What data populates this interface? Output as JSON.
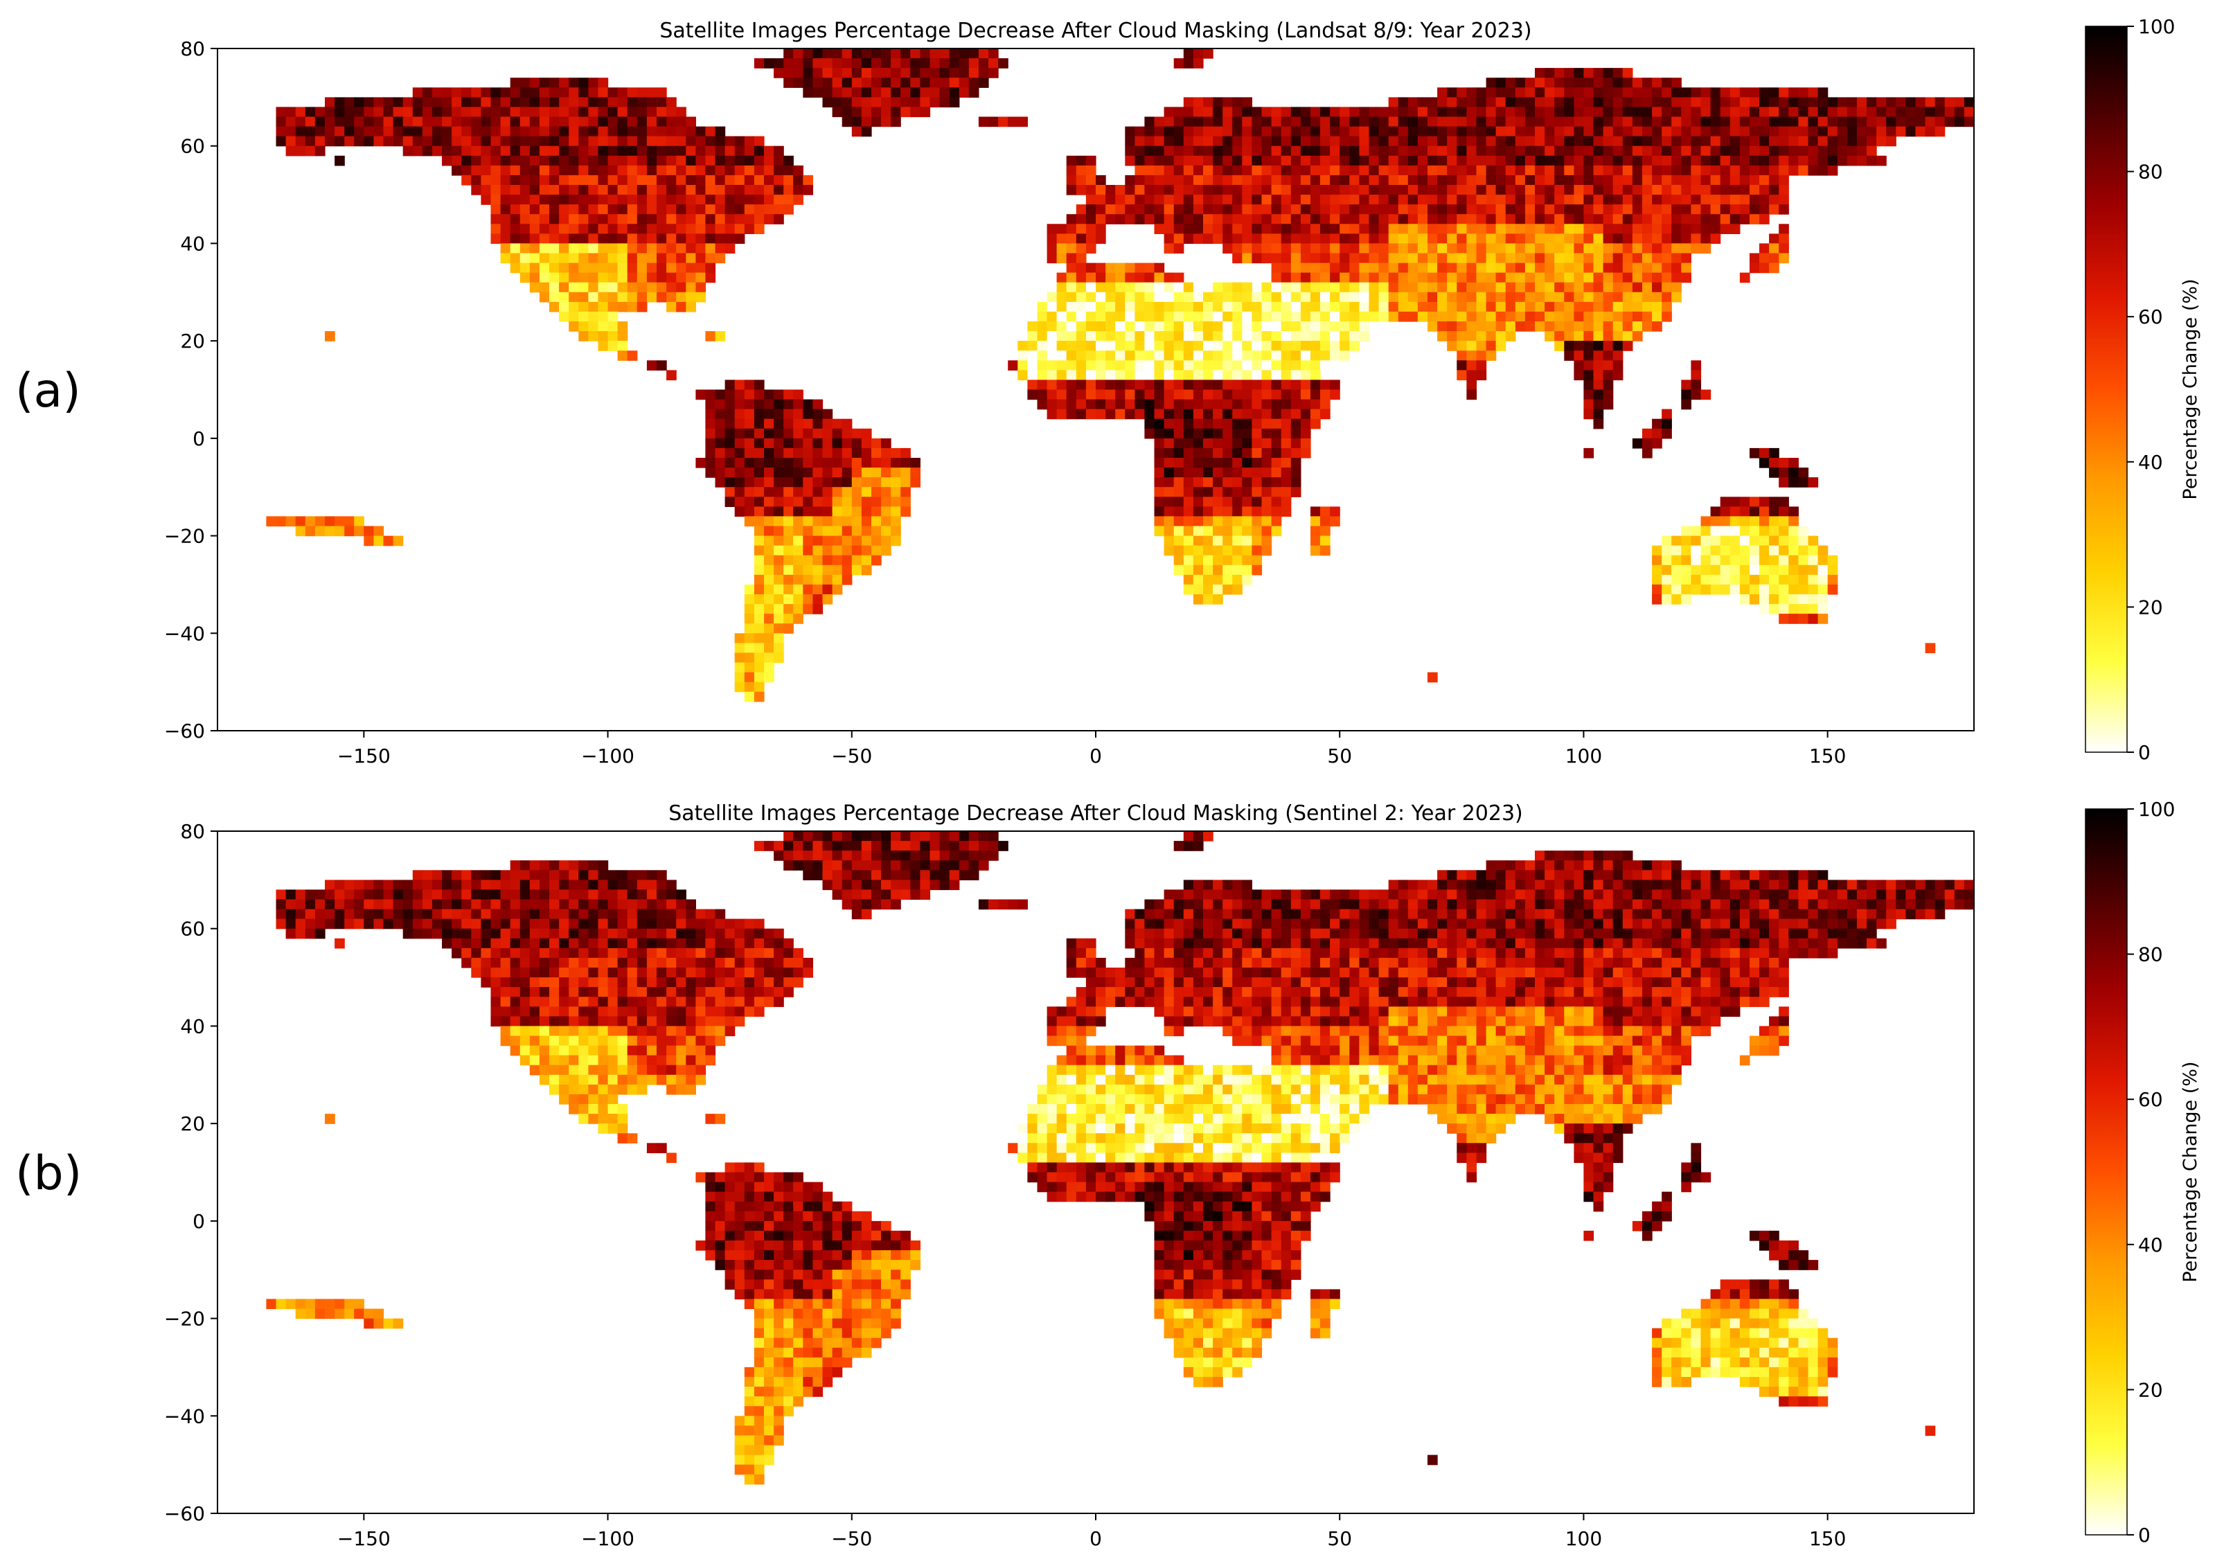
{
  "figure": {
    "panel_labels": [
      "(a)",
      "(b)"
    ]
  },
  "colormap": {
    "name": "hot_r",
    "stops": [
      "#ffffff",
      "#ffff40",
      "#ffd000",
      "#ff9a00",
      "#ff5000",
      "#e01800",
      "#a00000",
      "#500000",
      "#000000"
    ]
  },
  "chart_data": [
    {
      "type": "heatmap",
      "title": "Satellite Images Percentage Decrease After Cloud Masking (Landsat 8/9: Year 2023)",
      "xlabel": "",
      "ylabel": "",
      "xlim": [
        -180,
        180
      ],
      "ylim": [
        -60,
        80
      ],
      "xticks": [
        -150,
        -100,
        -50,
        0,
        50,
        100,
        150
      ],
      "yticks": [
        -60,
        -40,
        -20,
        0,
        20,
        40,
        60,
        80
      ],
      "colorbar": {
        "label": "Percentage Change (%)",
        "range": [
          0,
          100
        ],
        "ticks": [
          0,
          20,
          40,
          60,
          80,
          100
        ]
      },
      "cell_size_deg": 2,
      "value_units": "%",
      "land_regions_lonlat": {
        "north_america": [
          [
            -168,
            68
          ],
          [
            -140,
            71
          ],
          [
            -110,
            74
          ],
          [
            -90,
            72
          ],
          [
            -80,
            64
          ],
          [
            -64,
            60
          ],
          [
            -56,
            52
          ],
          [
            -66,
            44
          ],
          [
            -76,
            38
          ],
          [
            -80,
            30
          ],
          [
            -82,
            25
          ],
          [
            -90,
            28
          ],
          [
            -97,
            25
          ],
          [
            -96,
            18
          ],
          [
            -88,
            15
          ],
          [
            -80,
            8
          ],
          [
            -78,
            8
          ],
          [
            -86,
            12
          ],
          [
            -92,
            15
          ],
          [
            -105,
            20
          ],
          [
            -110,
            24
          ],
          [
            -117,
            32
          ],
          [
            -122,
            37
          ],
          [
            -125,
            48
          ],
          [
            -135,
            58
          ],
          [
            -150,
            60
          ],
          [
            -165,
            58
          ],
          [
            -168,
            62
          ]
        ],
        "south_america": [
          [
            -80,
            10
          ],
          [
            -72,
            12
          ],
          [
            -62,
            10
          ],
          [
            -50,
            3
          ],
          [
            -35,
            -5
          ],
          [
            -38,
            -13
          ],
          [
            -41,
            -22
          ],
          [
            -48,
            -28
          ],
          [
            -58,
            -36
          ],
          [
            -63,
            -40
          ],
          [
            -66,
            -48
          ],
          [
            -70,
            -55
          ],
          [
            -74,
            -52
          ],
          [
            -73,
            -40
          ],
          [
            -71,
            -30
          ],
          [
            -70,
            -18
          ],
          [
            -76,
            -12
          ],
          [
            -81,
            -5
          ],
          [
            -80,
            0
          ]
        ],
        "africa": [
          [
            -17,
            15
          ],
          [
            -10,
            30
          ],
          [
            -5,
            36
          ],
          [
            10,
            37
          ],
          [
            20,
            32
          ],
          [
            32,
            31
          ],
          [
            34,
            28
          ],
          [
            43,
            12
          ],
          [
            51,
            11
          ],
          [
            44,
            0
          ],
          [
            40,
            -15
          ],
          [
            35,
            -24
          ],
          [
            32,
            -29
          ],
          [
            27,
            -33
          ],
          [
            20,
            -35
          ],
          [
            18,
            -30
          ],
          [
            12,
            -18
          ],
          [
            13,
            -5
          ],
          [
            9,
            4
          ],
          [
            0,
            5
          ],
          [
            -8,
            4
          ],
          [
            -13,
            8
          ]
        ],
        "eurasia": [
          [
            -10,
            37
          ],
          [
            -9,
            44
          ],
          [
            -1,
            46
          ],
          [
            -5,
            48
          ],
          [
            2,
            51
          ],
          [
            8,
            54
          ],
          [
            5,
            62
          ],
          [
            15,
            68
          ],
          [
            25,
            71
          ],
          [
            40,
            67
          ],
          [
            60,
            69
          ],
          [
            80,
            73
          ],
          [
            100,
            77
          ],
          [
            120,
            73
          ],
          [
            140,
            72
          ],
          [
            160,
            70
          ],
          [
            180,
            69
          ],
          [
            180,
            64
          ],
          [
            160,
            60
          ],
          [
            162,
            56
          ],
          [
            143,
            54
          ],
          [
            141,
            46
          ],
          [
            132,
            43
          ],
          [
            127,
            40
          ],
          [
            122,
            37
          ],
          [
            121,
            31
          ],
          [
            117,
            24
          ],
          [
            110,
            20
          ],
          [
            106,
            10
          ],
          [
            104,
            2
          ],
          [
            100,
            6
          ],
          [
            99,
            13
          ],
          [
            97,
            16
          ],
          [
            92,
            22
          ],
          [
            88,
            22
          ],
          [
            80,
            15
          ],
          [
            77,
            8
          ],
          [
            72,
            20
          ],
          [
            67,
            24
          ],
          [
            58,
            25
          ],
          [
            56,
            22
          ],
          [
            52,
            18
          ],
          [
            45,
            13
          ],
          [
            40,
            20
          ],
          [
            34,
            28
          ],
          [
            36,
            36
          ],
          [
            28,
            37
          ],
          [
            26,
            40
          ],
          [
            20,
            40
          ],
          [
            15,
            38
          ],
          [
            12,
            44
          ],
          [
            8,
            44
          ],
          [
            3,
            43
          ],
          [
            -3,
            36
          ]
        ],
        "greenland": [
          [
            -72,
            78
          ],
          [
            -55,
            80
          ],
          [
            -20,
            80
          ],
          [
            -18,
            76
          ],
          [
            -25,
            70
          ],
          [
            -40,
            65
          ],
          [
            -50,
            62
          ],
          [
            -55,
            68
          ]
        ],
        "australia": [
          [
            114,
            -22
          ],
          [
            122,
            -18
          ],
          [
            130,
            -12
          ],
          [
            137,
            -12
          ],
          [
            142,
            -11
          ],
          [
            146,
            -19
          ],
          [
            153,
            -25
          ],
          [
            150,
            -37
          ],
          [
            141,
            -38
          ],
          [
            130,
            -32
          ],
          [
            115,
            -34
          ]
        ],
        "arabia": [
          [
            34,
            28
          ],
          [
            43,
            12
          ],
          [
            52,
            16
          ],
          [
            57,
            22
          ],
          [
            56,
            26
          ],
          [
            50,
            30
          ],
          [
            40,
            32
          ]
        ],
        "india": [
          [
            68,
            23
          ],
          [
            72,
            20
          ],
          [
            77,
            8
          ],
          [
            80,
            15
          ],
          [
            88,
            22
          ],
          [
            90,
            26
          ],
          [
            75,
            33
          ]
        ],
        "madagascar": [
          [
            44,
            -13
          ],
          [
            50,
            -15
          ],
          [
            47,
            -25
          ],
          [
            43,
            -22
          ]
        ],
        "uk": [
          [
            -6,
            50
          ],
          [
            2,
            51
          ],
          [
            0,
            58
          ],
          [
            -5,
            58
          ]
        ],
        "japan": [
          [
            130,
            31
          ],
          [
            142,
            36
          ],
          [
            142,
            45
          ],
          [
            137,
            40
          ]
        ],
        "borneo": [
          [
            109,
            -2
          ],
          [
            118,
            7
          ],
          [
            118,
            0
          ],
          [
            114,
            -4
          ]
        ],
        "sumatra": [
          [
            95,
            5
          ],
          [
            100,
            0
          ],
          [
            106,
            -6
          ],
          [
            101,
            -3
          ]
        ],
        "new_guinea": [
          [
            131,
            -1
          ],
          [
            141,
            -3
          ],
          [
            150,
            -10
          ],
          [
            140,
            -9
          ]
        ],
        "new_zealand": [
          [
            166,
            -46
          ],
          [
            174,
            -41
          ],
          [
            178,
            -37
          ],
          [
            172,
            -44
          ]
        ],
        "iceland": [
          [
            -24,
            64
          ],
          [
            -14,
            64
          ],
          [
            -14,
            66
          ],
          [
            -22,
            66
          ]
        ],
        "alaska_extra": [
          [
            -168,
            54
          ],
          [
            -150,
            58
          ],
          [
            -160,
            56
          ]
        ],
        "svalbard": [
          [
            12,
            78
          ],
          [
            25,
            80
          ],
          [
            20,
            76
          ]
        ],
        "philippines": [
          [
            120,
            6
          ],
          [
            126,
            8
          ],
          [
            122,
            18
          ]
        ],
        "sri_lanka": [
          [
            80,
            6
          ],
          [
            82,
            8
          ],
          [
            80,
            10
          ]
        ],
        "cuba": [
          [
            -85,
            22
          ],
          [
            -74,
            20
          ],
          [
            -78,
            23
          ]
        ],
        "hawaii_pacific": [
          [
            -160,
            20
          ],
          [
            -155,
            19
          ],
          [
            -157,
            22
          ]
        ],
        "pacific_islands_a": [
          [
            -175,
            -15
          ],
          [
            -150,
            -17
          ],
          [
            -140,
            -22
          ],
          [
            -160,
            -20
          ]
        ],
        "kerguelen": [
          [
            68,
            -49
          ],
          [
            71,
            -50
          ],
          [
            70,
            -48
          ]
        ]
      }
    },
    {
      "type": "heatmap",
      "title": "Satellite Images Percentage Decrease After Cloud Masking (Sentinel 2: Year 2023)",
      "xlabel": "",
      "ylabel": "",
      "xlim": [
        -180,
        180
      ],
      "ylim": [
        -60,
        80
      ],
      "xticks": [
        -150,
        -100,
        -50,
        0,
        50,
        100,
        150
      ],
      "yticks": [
        -60,
        -40,
        -20,
        0,
        20,
        40,
        60,
        80
      ],
      "colorbar": {
        "label": "Percentage Change (%)",
        "range": [
          0,
          100
        ],
        "ticks": [
          0,
          20,
          40,
          60,
          80,
          100
        ]
      },
      "cell_size_deg": 2,
      "value_units": "%"
    }
  ]
}
